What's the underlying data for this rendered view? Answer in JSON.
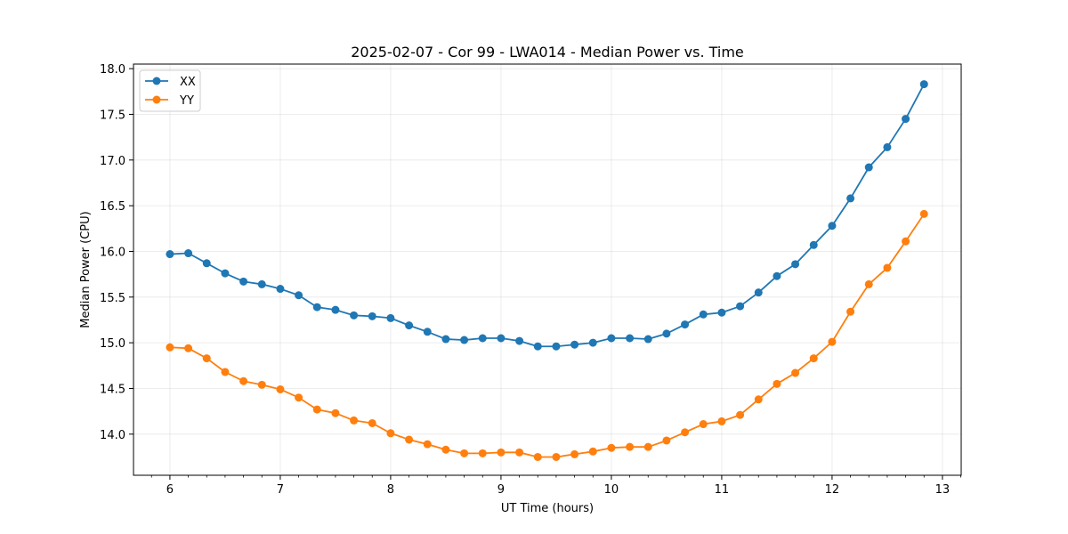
{
  "chart_data": {
    "type": "line",
    "title": "2025-02-07 - Cor 99 - LWA014 - Median Power vs. Time",
    "xlabel": "UT Time (hours)",
    "ylabel": "Median Power (CPU)",
    "xlim": [
      5.67,
      13.17
    ],
    "ylim": [
      13.55,
      18.05
    ],
    "xticks": [
      6,
      7,
      8,
      9,
      10,
      11,
      12,
      13
    ],
    "xtick_labels": [
      "6",
      "7",
      "8",
      "9",
      "10",
      "11",
      "12",
      "13"
    ],
    "yticks": [
      14.0,
      14.5,
      15.0,
      15.5,
      16.0,
      16.5,
      17.0,
      17.5,
      18.0
    ],
    "ytick_labels": [
      "14.0",
      "14.5",
      "15.0",
      "15.5",
      "16.0",
      "16.5",
      "17.0",
      "17.5",
      "18.0"
    ],
    "grid": true,
    "legend_position": "top-left",
    "x": [
      6.0,
      6.1667,
      6.3333,
      6.5,
      6.6667,
      6.8333,
      7.0,
      7.1667,
      7.3333,
      7.5,
      7.6667,
      7.8333,
      8.0,
      8.1667,
      8.3333,
      8.5,
      8.6667,
      8.8333,
      9.0,
      9.1667,
      9.3333,
      9.5,
      9.6667,
      9.8333,
      10.0,
      10.1667,
      10.3333,
      10.5,
      10.6667,
      10.8333,
      11.0,
      11.1667,
      11.3333,
      11.5,
      11.6667,
      11.8333,
      12.0,
      12.1667,
      12.3333,
      12.5,
      12.6667,
      12.8333
    ],
    "series": [
      {
        "name": "XX",
        "color": "#1f77b4",
        "values": [
          15.97,
          15.98,
          15.87,
          15.76,
          15.67,
          15.64,
          15.59,
          15.52,
          15.39,
          15.36,
          15.3,
          15.29,
          15.27,
          15.19,
          15.12,
          15.04,
          15.03,
          15.05,
          15.05,
          15.02,
          14.96,
          14.96,
          14.98,
          15.0,
          15.05,
          15.05,
          15.04,
          15.1,
          15.2,
          15.31,
          15.33,
          15.4,
          15.55,
          15.73,
          15.86,
          16.07,
          16.28,
          16.58,
          16.92,
          17.14,
          17.45,
          17.83
        ]
      },
      {
        "name": "YY",
        "color": "#ff7f0e",
        "values": [
          14.95,
          14.94,
          14.83,
          14.68,
          14.58,
          14.54,
          14.49,
          14.4,
          14.27,
          14.23,
          14.15,
          14.12,
          14.01,
          13.94,
          13.89,
          13.83,
          13.79,
          13.79,
          13.8,
          13.8,
          13.75,
          13.75,
          13.78,
          13.81,
          13.85,
          13.86,
          13.86,
          13.93,
          14.02,
          14.11,
          14.14,
          14.21,
          14.38,
          14.55,
          14.67,
          14.83,
          15.01,
          15.34,
          15.64,
          15.82,
          16.11,
          16.41
        ]
      }
    ]
  }
}
